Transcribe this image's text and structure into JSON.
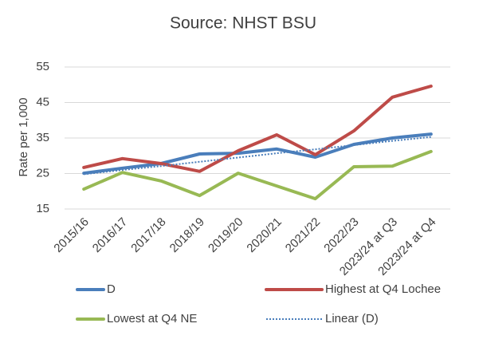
{
  "chart_data": {
    "type": "line",
    "title": "Source: NHST BSU",
    "y_label": "Rate per 1,000",
    "categories": [
      "2015/16",
      "2016/17",
      "2017/18",
      "2018/19",
      "2019/20",
      "2020/21",
      "2021/22",
      "2022/23",
      "2023/24 at Q3",
      "2023/24 at Q4"
    ],
    "series": [
      {
        "name": "D",
        "color": "#4a7ebb",
        "dotted": false,
        "values": [
          25.1,
          26.5,
          27.8,
          30.5,
          30.7,
          31.9,
          29.6,
          33.2,
          35.0,
          36.1
        ]
      },
      {
        "name": "Highest at Q4 Lochee",
        "color": "#be4b48",
        "dotted": false,
        "values": [
          26.7,
          29.2,
          27.8,
          25.6,
          31.4,
          35.9,
          30.3,
          37.0,
          46.5,
          49.6
        ]
      },
      {
        "name": "Lowest at Q4 NE",
        "color": "#98b954",
        "dotted": false,
        "values": [
          20.6,
          25.3,
          22.9,
          18.8,
          25.1,
          21.5,
          17.9,
          26.9,
          27.1,
          31.2
        ]
      },
      {
        "name": "Linear (D)",
        "color": "#4a7ebb",
        "dotted": true,
        "values": [
          24.8,
          26.0,
          27.1,
          28.3,
          29.5,
          30.7,
          31.8,
          33.0,
          34.2,
          35.3
        ]
      }
    ],
    "ylim": [
      15,
      55
    ],
    "yticks": [
      15,
      25,
      35,
      45,
      55
    ],
    "grid": true
  }
}
